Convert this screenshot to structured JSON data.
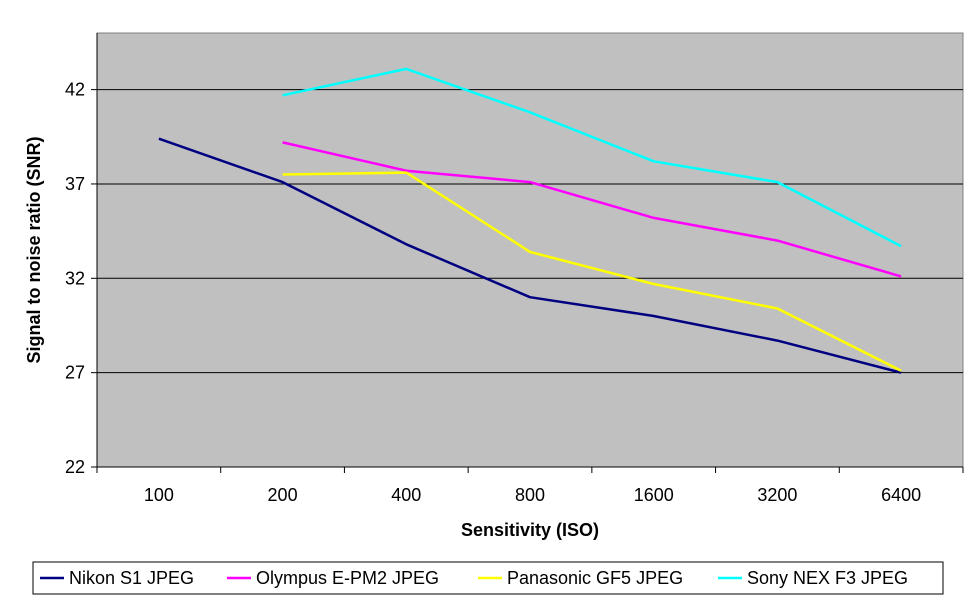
{
  "chart_data": {
    "type": "line",
    "title": "",
    "xlabel": "Sensitivity (ISO)",
    "ylabel": "Signal to noise ratio (SNR)",
    "categories": [
      "100",
      "200",
      "400",
      "800",
      "1600",
      "3200",
      "6400"
    ],
    "ylim": [
      22,
      45
    ],
    "yticks": [
      22,
      27,
      32,
      37,
      42
    ],
    "grid": true,
    "legend_position": "bottom",
    "background": "#c0c0c0",
    "series": [
      {
        "name": "Nikon S1 JPEG",
        "color": "#000080",
        "values": [
          39.4,
          37.1,
          33.8,
          31.0,
          30.0,
          28.7,
          27.0
        ]
      },
      {
        "name": "Olympus E-PM2 JPEG",
        "color": "#ff00ff",
        "values": [
          null,
          39.2,
          37.7,
          37.1,
          35.2,
          34.0,
          32.1
        ]
      },
      {
        "name": "Panasonic GF5 JPEG",
        "color": "#ffff00",
        "values": [
          null,
          37.5,
          37.6,
          33.4,
          31.7,
          30.4,
          27.1
        ]
      },
      {
        "name": "Sony NEX F3 JPEG",
        "color": "#00ffff",
        "values": [
          null,
          41.7,
          43.1,
          40.8,
          38.2,
          37.1,
          33.7
        ]
      }
    ]
  }
}
